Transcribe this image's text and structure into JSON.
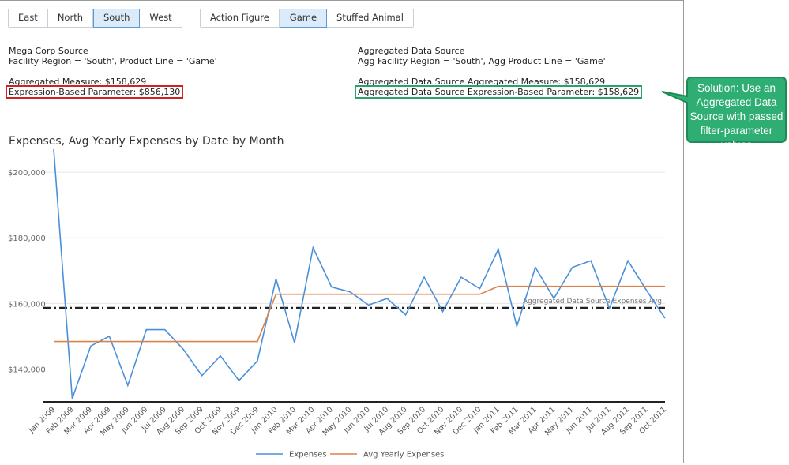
{
  "filters": {
    "region": {
      "options": [
        "East",
        "North",
        "South",
        "West"
      ],
      "selected": "South"
    },
    "product": {
      "options": [
        "Action Figure",
        "Game",
        "Stuffed Animal"
      ],
      "selected": "Game"
    }
  },
  "left_info": {
    "source": "Mega Corp Source",
    "filter_line": "Facility Region = 'South', Product Line = 'Game'",
    "measure": "Aggregated Measure: $158,629",
    "param": "Expression-Based Parameter: $856,130"
  },
  "right_info": {
    "source": "Aggregated Data Source",
    "filter_line": "Agg Facility Region = 'South', Agg Product Line = 'Game'",
    "measure": "Aggregated Data Source Aggregated Measure: $158,629",
    "param": "Aggregated Data Source Expression-Based Parameter: $158,629"
  },
  "callout": {
    "lines": [
      "Solution: Use an",
      "Aggregated Data",
      "Source with passed",
      "filter-parameter values"
    ],
    "fill": "#2fae74",
    "stroke": "#1f8a58"
  },
  "chart_data": {
    "type": "line",
    "title": "Expenses, Avg Yearly Expenses by Date by Month",
    "categories": [
      "Jan 2009",
      "Feb 2009",
      "Mar 2009",
      "Apr 2009",
      "May 2009",
      "Jun 2009",
      "Jul 2009",
      "Aug 2009",
      "Sep 2009",
      "Oct 2009",
      "Nov 2009",
      "Dec 2009",
      "Jan 2010",
      "Feb 2010",
      "Mar 2010",
      "Apr 2010",
      "May 2010",
      "Jun 2010",
      "Jul 2010",
      "Aug 2010",
      "Sep 2010",
      "Oct 2010",
      "Nov 2010",
      "Dec 2010",
      "Jan 2011",
      "Feb 2011",
      "Mar 2011",
      "Apr 2011",
      "May 2011",
      "Jun 2011",
      "Jul 2011",
      "Aug 2011",
      "Sep 2011",
      "Oct 2011"
    ],
    "series": [
      {
        "name": "Expenses",
        "color": "#4a90d9",
        "values": [
          207000,
          131000,
          147000,
          150000,
          135000,
          152000,
          152000,
          146000,
          138000,
          144000,
          136500,
          142500,
          167500,
          148000,
          177000,
          165000,
          163500,
          159500,
          161500,
          156500,
          168000,
          157500,
          168000,
          164500,
          176500,
          153000,
          171000,
          161500,
          171000,
          173000,
          158500,
          173000,
          164000,
          155500
        ]
      },
      {
        "name": "Avg Yearly Expenses",
        "color": "#d9824a",
        "values": [
          148400,
          148400,
          148400,
          148400,
          148400,
          148400,
          148400,
          148400,
          148400,
          148400,
          148400,
          148400,
          162800,
          162800,
          162800,
          162800,
          162800,
          162800,
          162800,
          162800,
          162800,
          162800,
          162800,
          162800,
          165200,
          165200,
          165200,
          165200,
          165200,
          165200,
          165200,
          165200,
          165200,
          165200
        ]
      }
    ],
    "reference_line": {
      "label": "Aggregated Data Source Expenses Avg",
      "value": 158629
    },
    "yticks": [
      140000,
      160000,
      180000,
      200000
    ],
    "ytick_labels": [
      "$140,000",
      "$160,000",
      "$180,000",
      "$200,000"
    ],
    "ylim": [
      130000,
      207000
    ],
    "grid": true,
    "legend_position": "bottom"
  }
}
